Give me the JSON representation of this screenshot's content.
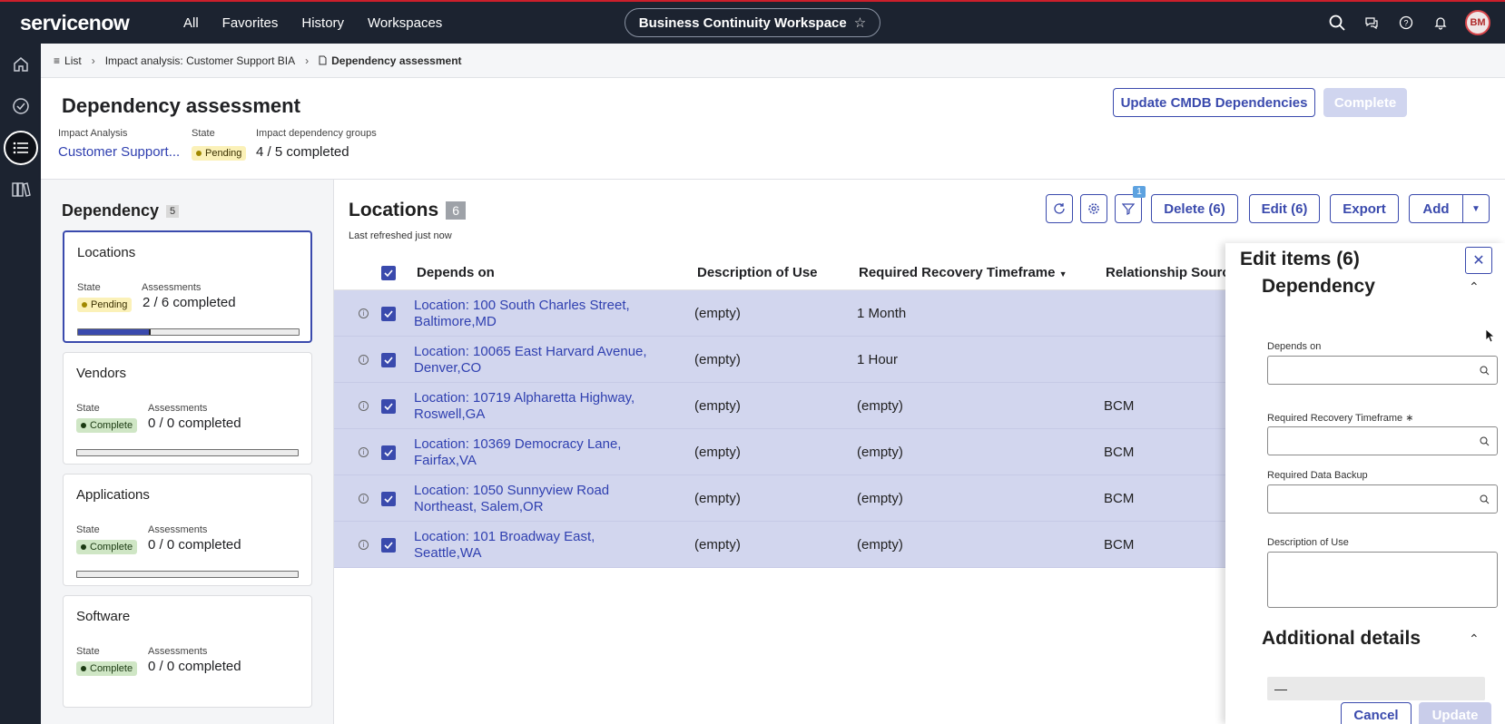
{
  "topnav": {
    "logo": "servicenow",
    "links": [
      "All",
      "Favorites",
      "History",
      "Workspaces"
    ],
    "workspace": "Business Continuity Workspace",
    "avatar": "BM"
  },
  "breadcrumb": {
    "list": "List",
    "parent": "Impact analysis: Customer Support BIA",
    "current": "Dependency assessment"
  },
  "header": {
    "title": "Dependency assessment",
    "impact_label": "Impact Analysis",
    "impact_value": "Customer Support...",
    "state_label": "State",
    "state_value": "Pending",
    "groups_label": "Impact dependency groups",
    "groups_value": "4 / 5 completed",
    "update_btn": "Update CMDB Dependencies",
    "complete_btn": "Complete"
  },
  "left": {
    "title": "Dependency",
    "count": "5",
    "state_label": "State",
    "assess_label": "Assessments",
    "cards": [
      {
        "title": "Locations",
        "state": "Pending",
        "assessments": "2 / 6 completed",
        "progress": 0.33
      },
      {
        "title": "Vendors",
        "state": "Complete",
        "assessments": "0 / 0 completed",
        "progress": 0
      },
      {
        "title": "Applications",
        "state": "Complete",
        "assessments": "0 / 0 completed",
        "progress": 0
      },
      {
        "title": "Software",
        "state": "Complete",
        "assessments": "0 / 0 completed",
        "progress": 0
      }
    ]
  },
  "main": {
    "title": "Locations",
    "count": "6",
    "refreshed": "Last refreshed just now",
    "filter_count": "1",
    "buttons": {
      "delete": "Delete (6)",
      "edit": "Edit (6)",
      "export": "Export",
      "add": "Add"
    },
    "columns": [
      "Depends on",
      "Description of Use",
      "Required Recovery Timeframe",
      "Relationship Source"
    ],
    "rows": [
      {
        "depends_on": "Location: 100 South Charles Street, Baltimore,MD",
        "description": "(empty)",
        "timeframe": "1 Month",
        "source": ""
      },
      {
        "depends_on": "Location: 10065 East Harvard Avenue, Denver,CO",
        "description": "(empty)",
        "timeframe": "1 Hour",
        "source": ""
      },
      {
        "depends_on": "Location: 10719 Alpharetta Highway, Roswell,GA",
        "description": "(empty)",
        "timeframe": "(empty)",
        "source": "BCM"
      },
      {
        "depends_on": "Location: 10369 Democracy Lane, Fairfax,VA",
        "description": "(empty)",
        "timeframe": "(empty)",
        "source": "BCM"
      },
      {
        "depends_on": "Location: 1050 Sunnyview Road Northeast, Salem,OR",
        "description": "(empty)",
        "timeframe": "(empty)",
        "source": "BCM"
      },
      {
        "depends_on": "Location: 101 Broadway East, Seattle,WA",
        "description": "(empty)",
        "timeframe": "(empty)",
        "source": "BCM"
      }
    ]
  },
  "edit": {
    "title": "Edit items (6)",
    "section1": "Dependency",
    "depends_on_label": "Depends on",
    "timeframe_label": "Required Recovery Timeframe",
    "required_mark": "∗",
    "backup_label": "Required Data Backup",
    "description_label": "Description of Use",
    "section2": "Additional details",
    "additional_value": "—",
    "cancel": "Cancel",
    "update": "Update"
  },
  "colors": {
    "accent": "#3a4aad",
    "nav_bg": "#1c2330",
    "row_selected": "#d2d6ee",
    "pending": "#fbf1b8",
    "complete": "#cfe6c5"
  }
}
